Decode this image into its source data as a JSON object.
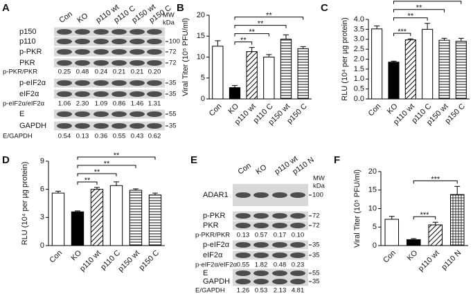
{
  "chart_data": [
    {
      "type": "bar",
      "label": "B",
      "ylabel": "Viral Titer (10⁵ PFU/ml)",
      "categories": [
        "Con",
        "KO",
        "p110 wt",
        "p110 C",
        "p150 wt",
        "p150 C"
      ],
      "values": [
        12.6,
        2.7,
        11.3,
        10,
        14.3,
        12
      ],
      "errors": [
        1.3,
        0.5,
        1,
        0.6,
        1,
        0.5
      ],
      "patterns": [
        "none",
        "solid",
        "diagonal",
        "none",
        "horizontal",
        "horizontal"
      ],
      "ylim": [
        0,
        20
      ],
      "yticks": [
        0,
        5,
        10,
        15,
        20
      ],
      "significance": [
        {
          "from": 1,
          "to": 2,
          "label": "**"
        },
        {
          "from": 1,
          "to": 3,
          "label": "**"
        },
        {
          "from": 1,
          "to": 4,
          "label": "**"
        },
        {
          "from": 1,
          "to": 5,
          "label": "**"
        }
      ]
    },
    {
      "type": "bar",
      "label": "C",
      "ylabel": "RLU (10⁴ per µg protein)",
      "categories": [
        "Con",
        "KO",
        "p110 wt",
        "p110 C",
        "p150 wt",
        "p150 C"
      ],
      "values": [
        3.52,
        1.85,
        2.97,
        3.5,
        2.95,
        2.9
      ],
      "errors": [
        0.15,
        0.05,
        0.05,
        0.3,
        0.1,
        0.15
      ],
      "patterns": [
        "none",
        "solid",
        "diagonal",
        "none",
        "horizontal",
        "horizontal"
      ],
      "ylim": [
        0,
        4
      ],
      "yticks": [
        {
          "value": 0,
          "label": "0.0"
        },
        0.5,
        {
          "value": 1,
          "label": "1.0"
        },
        1.5,
        {
          "value": 2,
          "label": "2.0"
        },
        2.5,
        {
          "value": 3,
          "label": "3.0"
        },
        3.5,
        {
          "value": 4,
          "label": "4.0"
        }
      ],
      "significance": [
        {
          "from": 1,
          "to": 2,
          "label": "***"
        },
        {
          "from": 1,
          "to": 3,
          "label": "**"
        },
        {
          "from": 1,
          "to": 4,
          "label": "**"
        },
        {
          "from": 1,
          "to": 5,
          "label": "**"
        }
      ]
    },
    {
      "type": "bar",
      "label": "D",
      "ylabel": "RLU (10⁴ per µg protein)",
      "categories": [
        "Con",
        "KO",
        "p110 wt",
        "p110 C",
        "p150 wt",
        "p150 C"
      ],
      "values": [
        5.6,
        3.6,
        6,
        6.4,
        5.9,
        5.4
      ],
      "errors": [
        0.2,
        0.1,
        0.2,
        0.4,
        0.15,
        0.2
      ],
      "patterns": [
        "none",
        "solid",
        "diagonal",
        "none",
        "horizontal",
        "horizontal"
      ],
      "ylim": [
        0,
        9
      ],
      "yticks": [
        0,
        3,
        6,
        9
      ],
      "significance": [
        {
          "from": 1,
          "to": 2,
          "label": "**"
        },
        {
          "from": 1,
          "to": 3,
          "label": "**"
        },
        {
          "from": 1,
          "to": 4,
          "label": "**"
        },
        {
          "from": 1,
          "to": 5,
          "label": "**"
        }
      ]
    },
    {
      "type": "bar",
      "label": "F",
      "ylabel": "Viral Titer (10⁵ PFU/ml)",
      "categories": [
        "Con",
        "KO",
        "p110 wt",
        "p110 N"
      ],
      "values": [
        7.1,
        1.6,
        5.6,
        13.8
      ],
      "errors": [
        0.8,
        0.3,
        0.7,
        2.2
      ],
      "patterns": [
        "none",
        "solid",
        "diagonal",
        "grid"
      ],
      "ylim": [
        0,
        20
      ],
      "yticks": [
        0,
        5,
        10,
        15,
        20
      ],
      "significance": [
        {
          "from": 1,
          "to": 2,
          "label": "***"
        },
        {
          "from": 1,
          "to": 3,
          "label": "***"
        }
      ]
    }
  ],
  "blot_a": {
    "label": "A",
    "lanes": [
      "Con",
      "KO",
      "p110 wt",
      "p110 C",
      "p150 wt",
      "p150 C"
    ],
    "mw_title": "MW",
    "mw_unit": "kDa",
    "rows": [
      {
        "name": "p150"
      },
      {
        "name": "p110",
        "mw": "100"
      },
      {
        "name": "p-PKR",
        "mw": "72"
      },
      {
        "name": "PKR",
        "mw": "72"
      },
      {
        "name": "p-PKR/PKR",
        "ratios": [
          "0.25",
          "0.48",
          "0.24",
          "0.21",
          "0.21",
          "0.20"
        ]
      },
      {
        "name": "p-eIF2α",
        "mw": "35"
      },
      {
        "name": "eIF2α",
        "mw": "35"
      },
      {
        "name": "p-eIF2α/eIF2α",
        "ratios": [
          "1.06",
          "2.30",
          "1.09",
          "0.86",
          "1.46",
          "1.31"
        ]
      },
      {
        "name": "E",
        "mw": "55"
      },
      {
        "name": "GAPDH",
        "mw": "35"
      },
      {
        "name": "E/GAPDH",
        "ratios": [
          "0.54",
          "0.13",
          "0.36",
          "0.55",
          "0.43",
          "0.62"
        ]
      }
    ]
  },
  "blot_e": {
    "label": "E",
    "lanes": [
      "Con",
      "KO",
      "p110 wt",
      "p110 N"
    ],
    "mw_title": "MW",
    "mw_unit": "kDa",
    "rows": [
      {
        "name": "ADAR1",
        "mw": "100"
      },
      {
        "name": "p-PKR",
        "mw": "72"
      },
      {
        "name": "PKR",
        "mw": "72"
      },
      {
        "name": "p-PKR/PKR",
        "ratios": [
          "0.13",
          "0.57",
          "0.17",
          "0.10"
        ]
      },
      {
        "name": "p-eIF2α",
        "mw": "35"
      },
      {
        "name": "eIF2α",
        "mw": "35"
      },
      {
        "name": "p-eIF2α/eIF2α",
        "ratios": [
          "0.55",
          "1.82",
          "0.48",
          "0.23"
        ]
      },
      {
        "name": "E",
        "mw": "55"
      },
      {
        "name": "GAPDH",
        "mw": "35"
      },
      {
        "name": "E/GAPDH",
        "ratios": [
          "1.26",
          "0.53",
          "2.13",
          "4.81"
        ]
      }
    ]
  }
}
